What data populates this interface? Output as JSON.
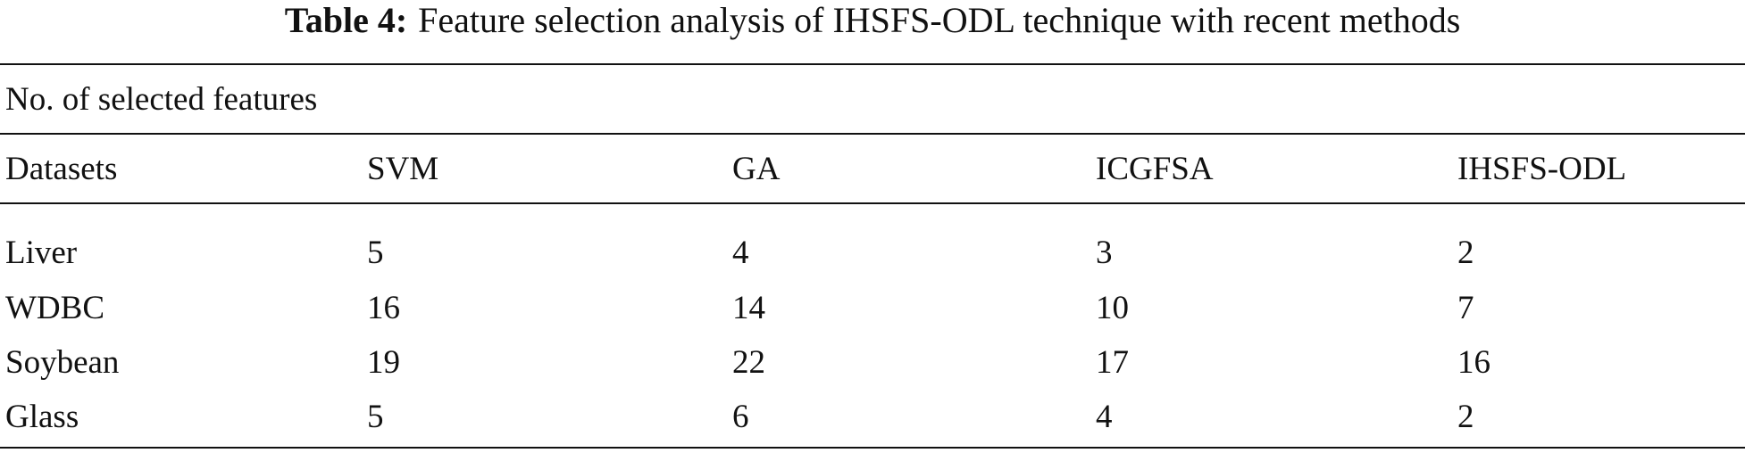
{
  "caption": {
    "label": "Table 4:",
    "text": "Feature selection analysis of IHSFS-ODL technique with recent methods"
  },
  "table": {
    "group_header": "No. of selected features",
    "columns": [
      "Datasets",
      "SVM",
      "GA",
      "ICGFSA",
      "IHSFS-ODL"
    ],
    "rows": [
      [
        "Liver",
        5,
        4,
        3,
        2
      ],
      [
        "WDBC",
        16,
        14,
        10,
        7
      ],
      [
        "Soybean",
        19,
        22,
        17,
        16
      ],
      [
        "Glass",
        5,
        6,
        4,
        2
      ]
    ]
  }
}
